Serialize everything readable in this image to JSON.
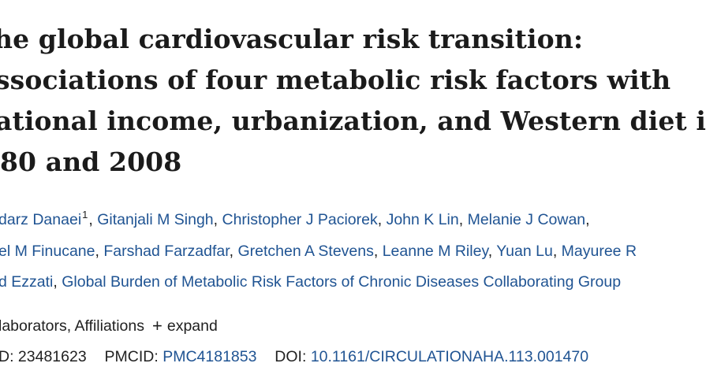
{
  "title": {
    "lines": [
      "he global cardiovascular risk transition:",
      "ssociations of four metabolic risk factors with",
      "ational income, urbanization, and Western diet i",
      "80 and 2008"
    ]
  },
  "authors": {
    "line1": [
      "darz Danaei",
      "Gitanjali M Singh",
      "Christopher J Paciorek",
      "John K Lin",
      "Melanie J Cowan"
    ],
    "line1_sup": "1",
    "line2": [
      "el M Finucane",
      "Farshad Farzadfar",
      "Gretchen A Stevens",
      "Leanne M Riley",
      "Yuan Lu",
      "Mayuree R"
    ],
    "line3": [
      "d Ezzati",
      "Global Burden of Metabolic Risk Factors of Chronic Diseases Collaborating Group"
    ]
  },
  "affiliations": {
    "label": "laborators, Affiliations",
    "expand_icon": "plus-icon",
    "expand_label": "expand"
  },
  "ids": {
    "pmid_label": "D:",
    "pmid_value": "23481623",
    "pmcid_label": "PMCID:",
    "pmcid_value": "PMC4181853",
    "doi_label": "DOI:",
    "doi_value": "10.1161/CIRCULATIONAHA.113.001470"
  },
  "colors": {
    "link": "#205493",
    "text": "#212121",
    "title": "#1b1b1b"
  }
}
